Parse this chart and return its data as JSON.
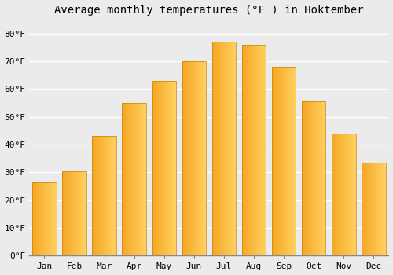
{
  "title": "Average monthly temperatures (°F ) in Hoktember",
  "months": [
    "Jan",
    "Feb",
    "Mar",
    "Apr",
    "May",
    "Jun",
    "Jul",
    "Aug",
    "Sep",
    "Oct",
    "Nov",
    "Dec"
  ],
  "values": [
    26.5,
    30.5,
    43.0,
    55.0,
    63.0,
    70.0,
    77.0,
    76.0,
    68.0,
    55.5,
    44.0,
    33.5
  ],
  "bar_color_left": "#F5A623",
  "bar_color_right": "#FFD060",
  "bar_color_bottom": "#F5A000",
  "bar_edge_color": "#C8820A",
  "ylim": [
    0,
    85
  ],
  "yticks": [
    0,
    10,
    20,
    30,
    40,
    50,
    60,
    70,
    80
  ],
  "background_color": "#EBEBEB",
  "plot_bg_color": "#EBEBEB",
  "grid_color": "#FFFFFF",
  "title_fontsize": 10,
  "tick_fontsize": 8,
  "bar_width": 0.8
}
